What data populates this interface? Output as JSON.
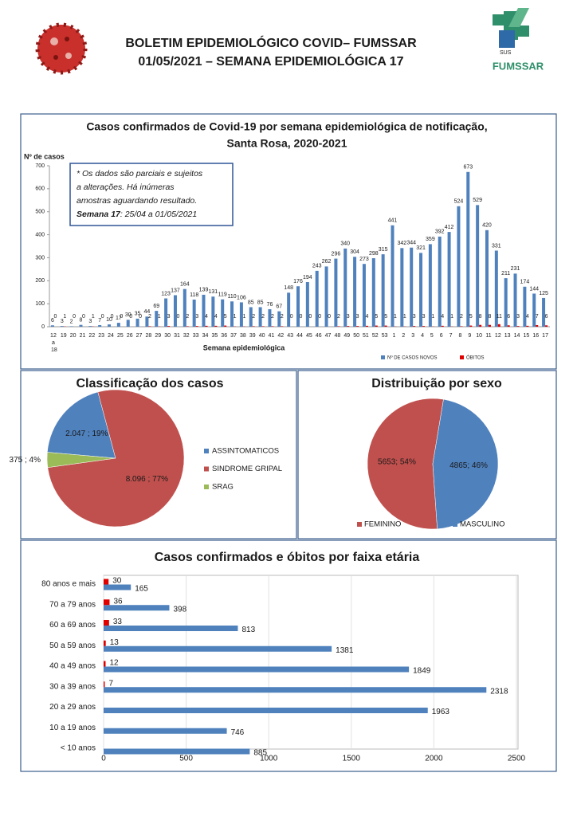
{
  "header": {
    "title_line1": "BOLETIM EPIDEMIOLÓGICO COVID– FUMSSAR",
    "title_line2": "01/05/2021 – SEMANA EPIDEMIOLÓGICA 17",
    "logo_sus": "SUS",
    "logo_name": "FUMSSAR"
  },
  "chart_data": [
    {
      "type": "bar",
      "title": "Casos confirmados de Covid-19 por semana epidemiológica de notificação,",
      "subtitle": "Santa Rosa, 2020-2021",
      "ylabel": "Nº de casos",
      "xlabel": "Semana epidemiológica",
      "annotation": [
        "* Os dados são parciais e sujeitos",
        "a alterações. Há inúmeras",
        "amostras aguardando resultado."
      ],
      "annotation_bold": "Semana 17",
      "annotation_tail": ": 25/04 a  01/05/2021",
      "categories": [
        "12 a 18",
        "19",
        "20",
        "21",
        "22",
        "23",
        "24",
        "25",
        "26",
        "27",
        "28",
        "29",
        "30",
        "31",
        "32",
        "33",
        "34",
        "35",
        "36",
        "37",
        "38",
        "39",
        "40",
        "41",
        "42",
        "43",
        "44",
        "45",
        "46",
        "47",
        "48",
        "49",
        "50",
        "51",
        "52",
        "53",
        "1",
        "2",
        "3",
        "4",
        "5",
        "6",
        "7",
        "8",
        "9",
        "10",
        "11",
        "12",
        "13",
        "14",
        "15",
        "16",
        "17"
      ],
      "series": [
        {
          "name": "Nº DE CASOS NOVOS",
          "color": "#4f81bd",
          "values": [
            6,
            3,
            2,
            8,
            3,
            7,
            10,
            17,
            30,
            35,
            44,
            69,
            123,
            137,
            164,
            118,
            139,
            131,
            119,
            110,
            106,
            85,
            85,
            76,
            67,
            148,
            176,
            194,
            243,
            262,
            296,
            340,
            304,
            273,
            298,
            315,
            441,
            342,
            344,
            321,
            359,
            392,
            412,
            524,
            673,
            529,
            420,
            331,
            211,
            231,
            174,
            144,
            125
          ]
        },
        {
          "name": "ÓBITOS",
          "color": "#e00000",
          "values": [
            0,
            1,
            0,
            0,
            1,
            0,
            0,
            0,
            0,
            0,
            2,
            1,
            3,
            0,
            2,
            3,
            4,
            4,
            5,
            1,
            1,
            2,
            2,
            2,
            2,
            0,
            0,
            0,
            0,
            0,
            2,
            3,
            3,
            4,
            5,
            5,
            1,
            1,
            3,
            3,
            1,
            4,
            1,
            2,
            5,
            8,
            8,
            11,
            6,
            3,
            4,
            7,
            6
          ]
        }
      ],
      "ylim": [
        0,
        700
      ],
      "yticks": [
        0,
        100,
        200,
        300,
        400,
        500,
        600,
        700
      ],
      "grid": false,
      "legend": "bottom-right"
    },
    {
      "type": "pie",
      "title": "Classificação dos casos",
      "categories": [
        "ASSINTOMATICOS",
        "SINDROME GRIPAL",
        "SRAG"
      ],
      "values": [
        2047,
        8096,
        375
      ],
      "value_labels": [
        "2.047 ; 19%",
        "8.096 ; 77%",
        "375 ; 4%"
      ],
      "colors": [
        "#4f81bd",
        "#c0504d",
        "#9bbb59"
      ],
      "legend": "right"
    },
    {
      "type": "pie",
      "title": "Distribuição por sexo",
      "categories": [
        "FEMININO",
        "MASCULINO"
      ],
      "values": [
        5653,
        4865
      ],
      "value_labels": [
        "5653; 54%",
        "4865; 46%"
      ],
      "colors": [
        "#c0504d",
        "#4f81bd"
      ],
      "legend": "bottom"
    },
    {
      "type": "bar",
      "orientation": "horizontal",
      "title": "Casos confirmados e óbitos  por faixa etária",
      "categories": [
        "80 anos e mais",
        "70 a 79 anos",
        "60 a 69 anos",
        "50 a 59 anos",
        "40 a 49 anos",
        "30 a 39 anos",
        "20 a 29 anos",
        "10 a 19 anos",
        "< 10 anos"
      ],
      "series": [
        {
          "color": "#4f81bd",
          "values": [
            165,
            398,
            813,
            1381,
            1849,
            2318,
            1963,
            746,
            885
          ]
        },
        {
          "color": "#e00000",
          "values": [
            30,
            36,
            33,
            13,
            12,
            7,
            null,
            null,
            null
          ]
        }
      ],
      "xlim": [
        0,
        2500
      ],
      "xticks": [
        0,
        500,
        1000,
        1500,
        2000,
        2500
      ],
      "grid": true
    }
  ]
}
